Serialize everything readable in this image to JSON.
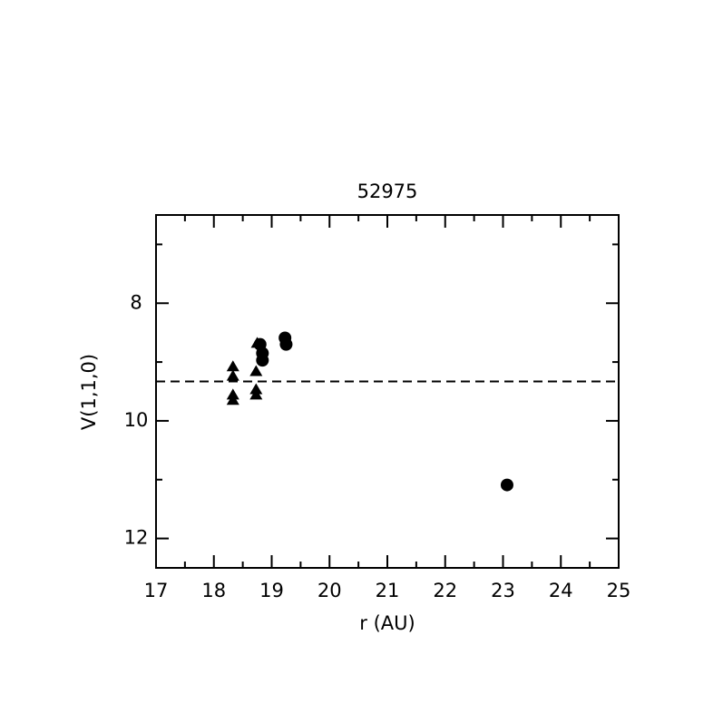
{
  "chart_data": {
    "type": "scatter",
    "title": "52975",
    "x_label": "r (AU)",
    "y_label": "V(1,1,0)",
    "xlim": [
      17,
      25
    ],
    "ylim": [
      12.5,
      6.5
    ],
    "xticks": [
      17,
      18,
      19,
      20,
      21,
      22,
      23,
      24,
      25
    ],
    "xminor": [
      17.5,
      18.5,
      19.5,
      20.5,
      21.5,
      22.5,
      23.5,
      24.5
    ],
    "yticks": [
      8,
      10,
      12
    ],
    "yminor": [
      7,
      9,
      11
    ],
    "hline": 9.33,
    "grid": false,
    "series": [
      {
        "marker": "triangle",
        "color": "#000000",
        "x": [
          18.33,
          18.33,
          18.33,
          18.33,
          18.73,
          18.73,
          18.73,
          18.75
        ],
        "values": [
          9.08,
          9.24,
          9.56,
          9.65,
          9.16,
          9.47,
          9.56,
          8.68
        ]
      },
      {
        "marker": "circle",
        "color": "#000000",
        "x": [
          18.8,
          18.84,
          18.84,
          19.23,
          19.25,
          23.07
        ],
        "values": [
          8.7,
          8.85,
          8.97,
          8.59,
          8.7,
          11.09
        ]
      }
    ]
  }
}
